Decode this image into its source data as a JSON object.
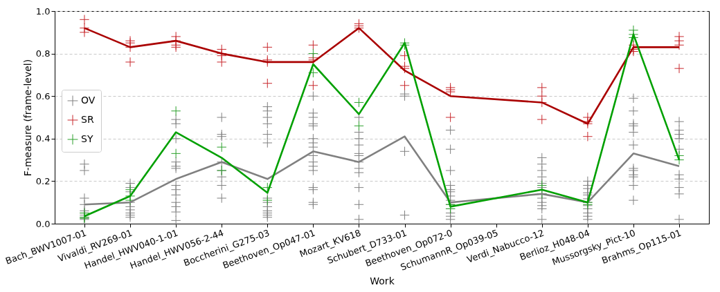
{
  "chart_data": {
    "type": "scatter",
    "xlabel": "Work",
    "ylabel": "F-measure (frame-level)",
    "categories": [
      "Bach_BWV1007-01",
      "Vivaldi_RV269-01",
      "Handel_HWV040-1-01",
      "Handel_HWV056-2-44",
      "Boccherini_G275-03",
      "Beethoven_Op047-01",
      "Mozart_KV618",
      "Schubert_D733-01",
      "Beethoven_Op072-0",
      "SchumannR_Op039-05",
      "Verdi_Nabucco-12",
      "Berlioz_H048-04",
      "Mussorgsky_Pict-10",
      "Brahms_Op115-01"
    ],
    "ylim": [
      0,
      1
    ],
    "yticks": [
      {
        "value": 0,
        "label": "0.0"
      },
      {
        "value": 0.2,
        "label": "0.2"
      },
      {
        "value": 0.4,
        "label": "0.4"
      },
      {
        "value": 0.6,
        "label": "0.6"
      },
      {
        "value": 0.8,
        "label": "0.8"
      },
      {
        "value": 1,
        "label": "1.0"
      }
    ],
    "grid": "y",
    "legend": "left",
    "series": [
      {
        "name": "OV",
        "marker": "cross",
        "color": "#808080",
        "x": [
          "Bach_BWV1007-01",
          "Bach_BWV1007-01",
          "Bach_BWV1007-01",
          "Bach_BWV1007-01",
          "Bach_BWV1007-01",
          "Bach_BWV1007-01",
          "Bach_BWV1007-01",
          "Bach_BWV1007-01",
          "Bach_BWV1007-01",
          "Vivaldi_RV269-01",
          "Vivaldi_RV269-01",
          "Vivaldi_RV269-01",
          "Vivaldi_RV269-01",
          "Vivaldi_RV269-01",
          "Vivaldi_RV269-01",
          "Vivaldi_RV269-01",
          "Vivaldi_RV269-01",
          "Vivaldi_RV269-01",
          "Handel_HWV040-1-01",
          "Handel_HWV040-1-01",
          "Handel_HWV040-1-01",
          "Handel_HWV040-1-01",
          "Handel_HWV040-1-01",
          "Handel_HWV040-1-01",
          "Handel_HWV040-1-01",
          "Handel_HWV040-1-01",
          "Handel_HWV040-1-01",
          "Handel_HWV040-1-01",
          "Handel_HWV040-1-01",
          "Handel_HWV040-1-01",
          "Handel_HWV040-1-01",
          "Handel_HWV056-2-44",
          "Handel_HWV056-2-44",
          "Handel_HWV056-2-44",
          "Handel_HWV056-2-44",
          "Handel_HWV056-2-44",
          "Handel_HWV056-2-44",
          "Handel_HWV056-2-44",
          "Handel_HWV056-2-44",
          "Boccherini_G275-03",
          "Boccherini_G275-03",
          "Boccherini_G275-03",
          "Boccherini_G275-03",
          "Boccherini_G275-03",
          "Boccherini_G275-03",
          "Boccherini_G275-03",
          "Boccherini_G275-03",
          "Boccherini_G275-03",
          "Boccherini_G275-03",
          "Boccherini_G275-03",
          "Boccherini_G275-03",
          "Boccherini_G275-03",
          "Beethoven_Op047-01",
          "Beethoven_Op047-01",
          "Beethoven_Op047-01",
          "Beethoven_Op047-01",
          "Beethoven_Op047-01",
          "Beethoven_Op047-01",
          "Beethoven_Op047-01",
          "Beethoven_Op047-01",
          "Beethoven_Op047-01",
          "Beethoven_Op047-01",
          "Beethoven_Op047-01",
          "Beethoven_Op047-01",
          "Beethoven_Op047-01",
          "Beethoven_Op047-01",
          "Beethoven_Op047-01",
          "Beethoven_Op047-01",
          "Mozart_KV618",
          "Mozart_KV618",
          "Mozart_KV618",
          "Mozart_KV618",
          "Mozart_KV618",
          "Mozart_KV618",
          "Mozart_KV618",
          "Mozart_KV618",
          "Mozart_KV618",
          "Mozart_KV618",
          "Mozart_KV618",
          "Mozart_KV618",
          "Schubert_D733-01",
          "Schubert_D733-01",
          "Schubert_D733-01",
          "Schubert_D733-01",
          "Beethoven_Op072-0",
          "Beethoven_Op072-0",
          "Beethoven_Op072-0",
          "Beethoven_Op072-0",
          "Beethoven_Op072-0",
          "Beethoven_Op072-0",
          "Beethoven_Op072-0",
          "Beethoven_Op072-0",
          "Beethoven_Op072-0",
          "Beethoven_Op072-0",
          "Beethoven_Op072-0",
          "Beethoven_Op072-0",
          "Beethoven_Op072-0",
          "Verdi_Nabucco-12",
          "Verdi_Nabucco-12",
          "Verdi_Nabucco-12",
          "Verdi_Nabucco-12",
          "Verdi_Nabucco-12",
          "Verdi_Nabucco-12",
          "Verdi_Nabucco-12",
          "Verdi_Nabucco-12",
          "Verdi_Nabucco-12",
          "Verdi_Nabucco-12",
          "Verdi_Nabucco-12",
          "Verdi_Nabucco-12",
          "Berlioz_H048-04",
          "Berlioz_H048-04",
          "Berlioz_H048-04",
          "Berlioz_H048-04",
          "Berlioz_H048-04",
          "Berlioz_H048-04",
          "Berlioz_H048-04",
          "Berlioz_H048-04",
          "Berlioz_H048-04",
          "Berlioz_H048-04",
          "Berlioz_H048-04",
          "Berlioz_H048-04",
          "Mussorgsky_Pict-10",
          "Mussorgsky_Pict-10",
          "Mussorgsky_Pict-10",
          "Mussorgsky_Pict-10",
          "Mussorgsky_Pict-10",
          "Mussorgsky_Pict-10",
          "Mussorgsky_Pict-10",
          "Mussorgsky_Pict-10",
          "Mussorgsky_Pict-10",
          "Mussorgsky_Pict-10",
          "Mussorgsky_Pict-10",
          "Mussorgsky_Pict-10",
          "Brahms_Op115-01",
          "Brahms_Op115-01",
          "Brahms_Op115-01",
          "Brahms_Op115-01",
          "Brahms_Op115-01",
          "Brahms_Op115-01",
          "Brahms_Op115-01",
          "Brahms_Op115-01",
          "Brahms_Op115-01",
          "Brahms_Op115-01"
        ],
        "values": [
          0.28,
          0.25,
          0.12,
          0.09,
          0.06,
          0.05,
          0.04,
          0.03,
          0.02,
          0.19,
          0.17,
          0.15,
          0.1,
          0.08,
          0.065,
          0.05,
          0.04,
          0.03,
          0.49,
          0.47,
          0.4,
          0.29,
          0.27,
          0.26,
          0.18,
          0.16,
          0.135,
          0.1,
          0.08,
          0.055,
          0.015,
          0.5,
          0.42,
          0.41,
          0.29,
          0.25,
          0.22,
          0.18,
          0.12,
          0.55,
          0.53,
          0.5,
          0.47,
          0.42,
          0.38,
          0.12,
          0.1,
          0.08,
          0.06,
          0.05,
          0.04,
          0.03,
          0.6,
          0.52,
          0.5,
          0.47,
          0.46,
          0.4,
          0.38,
          0.36,
          0.32,
          0.29,
          0.27,
          0.25,
          0.17,
          0.16,
          0.1,
          0.09,
          0.5,
          0.43,
          0.4,
          0.37,
          0.33,
          0.32,
          0.29,
          0.26,
          0.24,
          0.17,
          0.09,
          0.02,
          0.61,
          0.6,
          0.34,
          0.04,
          0.44,
          0.35,
          0.25,
          0.18,
          0.16,
          0.15,
          0.13,
          0.11,
          0.09,
          0.07,
          0.05,
          0.035,
          0.02,
          0.31,
          0.28,
          0.25,
          0.22,
          0.19,
          0.17,
          0.14,
          0.12,
          0.1,
          0.085,
          0.07,
          0.02,
          0.2,
          0.18,
          0.165,
          0.145,
          0.135,
          0.117,
          0.1,
          0.085,
          0.07,
          0.05,
          0.035,
          0.02,
          0.59,
          0.53,
          0.47,
          0.46,
          0.43,
          0.37,
          0.26,
          0.25,
          0.23,
          0.22,
          0.18,
          0.11,
          0.48,
          0.44,
          0.42,
          0.4,
          0.35,
          0.23,
          0.21,
          0.17,
          0.14,
          0.02
        ]
      },
      {
        "name": "SR",
        "marker": "cross",
        "color": "#c8282d",
        "x": [
          "Bach_BWV1007-01",
          "Bach_BWV1007-01",
          "Bach_BWV1007-01",
          "Vivaldi_RV269-01",
          "Vivaldi_RV269-01",
          "Vivaldi_RV269-01",
          "Vivaldi_RV269-01",
          "Handel_HWV040-1-01",
          "Handel_HWV040-1-01",
          "Handel_HWV040-1-01",
          "Handel_HWV040-1-01",
          "Handel_HWV056-2-44",
          "Handel_HWV056-2-44",
          "Handel_HWV056-2-44",
          "Handel_HWV056-2-44",
          "Boccherini_G275-03",
          "Boccherini_G275-03",
          "Boccherini_G275-03",
          "Boccherini_G275-03",
          "Beethoven_Op047-01",
          "Beethoven_Op047-01",
          "Beethoven_Op047-01",
          "Beethoven_Op047-01",
          "Mozart_KV618",
          "Mozart_KV618",
          "Mozart_KV618",
          "Schubert_D733-01",
          "Schubert_D733-01",
          "Schubert_D733-01",
          "Schubert_D733-01",
          "Beethoven_Op072-0",
          "Beethoven_Op072-0",
          "Beethoven_Op072-0",
          "Beethoven_Op072-0",
          "Verdi_Nabucco-12",
          "Verdi_Nabucco-12",
          "Verdi_Nabucco-12",
          "Verdi_Nabucco-12",
          "Berlioz_H048-04",
          "Berlioz_H048-04",
          "Berlioz_H048-04",
          "Berlioz_H048-04",
          "Mussorgsky_Pict-10",
          "Mussorgsky_Pict-10",
          "Mussorgsky_Pict-10",
          "Brahms_Op115-01",
          "Brahms_Op115-01",
          "Brahms_Op115-01",
          "Brahms_Op115-01"
        ],
        "values": [
          0.96,
          0.92,
          0.9,
          0.86,
          0.85,
          0.83,
          0.76,
          0.88,
          0.86,
          0.84,
          0.83,
          0.82,
          0.8,
          0.79,
          0.76,
          0.83,
          0.77,
          0.76,
          0.66,
          0.84,
          0.78,
          0.77,
          0.65,
          0.94,
          0.93,
          0.92,
          0.79,
          0.74,
          0.73,
          0.65,
          0.64,
          0.63,
          0.62,
          0.5,
          0.64,
          0.6,
          0.57,
          0.49,
          0.5,
          0.48,
          0.47,
          0.41,
          0.84,
          0.82,
          0.81,
          0.88,
          0.86,
          0.84,
          0.73
        ]
      },
      {
        "name": "SY",
        "marker": "cross",
        "color": "#2ca02c",
        "x": [
          "Bach_BWV1007-01",
          "Bach_BWV1007-01",
          "Bach_BWV1007-01",
          "Vivaldi_RV269-01",
          "Vivaldi_RV269-01",
          "Vivaldi_RV269-01",
          "Handel_HWV040-1-01",
          "Handel_HWV040-1-01",
          "Handel_HWV056-2-44",
          "Handel_HWV056-2-44",
          "Boccherini_G275-03",
          "Boccherini_G275-03",
          "Beethoven_Op047-01",
          "Beethoven_Op047-01",
          "Mozart_KV618",
          "Mozart_KV618",
          "Schubert_D733-01",
          "Schubert_D733-01",
          "Beethoven_Op072-0",
          "Beethoven_Op072-0",
          "Verdi_Nabucco-12",
          "Verdi_Nabucco-12",
          "Berlioz_H048-04",
          "Berlioz_H048-04",
          "Mussorgsky_Pict-10",
          "Mussorgsky_Pict-10",
          "Mussorgsky_Pict-10",
          "Brahms_Op115-01",
          "Brahms_Op115-01"
        ],
        "values": [
          0.05,
          0.03,
          0.025,
          0.16,
          0.13,
          0.11,
          0.53,
          0.33,
          0.36,
          0.25,
          0.17,
          0.11,
          0.8,
          0.71,
          0.57,
          0.46,
          0.85,
          0.84,
          0.09,
          0.07,
          0.18,
          0.14,
          0.1,
          0.09,
          0.91,
          0.89,
          0.875,
          0.32,
          0.3
        ]
      },
      {
        "type": "line",
        "color": "#808080",
        "x": [
          "Bach_BWV1007-01",
          "Vivaldi_RV269-01",
          "Handel_HWV040-1-01",
          "Handel_HWV056-2-44",
          "Boccherini_G275-03",
          "Beethoven_Op047-01",
          "Mozart_KV618",
          "Schubert_D733-01",
          "Beethoven_Op072-0",
          "Verdi_Nabucco-12",
          "Berlioz_H048-04",
          "Mussorgsky_Pict-10",
          "Brahms_Op115-01"
        ],
        "values": [
          0.09,
          0.1,
          0.21,
          0.29,
          0.21,
          0.34,
          0.29,
          0.41,
          0.1,
          0.14,
          0.1,
          0.33,
          0.27
        ]
      },
      {
        "type": "line",
        "color": "#aa0000",
        "x": [
          "Bach_BWV1007-01",
          "Vivaldi_RV269-01",
          "Handel_HWV040-1-01",
          "Handel_HWV056-2-44",
          "Boccherini_G275-03",
          "Beethoven_Op047-01",
          "Mozart_KV618",
          "Schubert_D733-01",
          "Beethoven_Op072-0",
          "Verdi_Nabucco-12",
          "Berlioz_H048-04",
          "Mussorgsky_Pict-10",
          "Brahms_Op115-01"
        ],
        "values": [
          0.92,
          0.83,
          0.86,
          0.8,
          0.76,
          0.76,
          0.92,
          0.72,
          0.6,
          0.57,
          0.47,
          0.83,
          0.83
        ]
      },
      {
        "type": "line",
        "color": "#00a000",
        "x": [
          "Bach_BWV1007-01",
          "Vivaldi_RV269-01",
          "Handel_HWV040-1-01",
          "Handel_HWV056-2-44",
          "Boccherini_G275-03",
          "Beethoven_Op047-01",
          "Mozart_KV618",
          "Schubert_D733-01",
          "Beethoven_Op072-0",
          "Verdi_Nabucco-12",
          "Berlioz_H048-04",
          "Mussorgsky_Pict-10",
          "Brahms_Op115-01"
        ],
        "values": [
          0.035,
          0.13,
          0.43,
          0.31,
          0.145,
          0.75,
          0.515,
          0.85,
          0.08,
          0.16,
          0.1,
          0.89,
          0.3
        ]
      }
    ]
  }
}
